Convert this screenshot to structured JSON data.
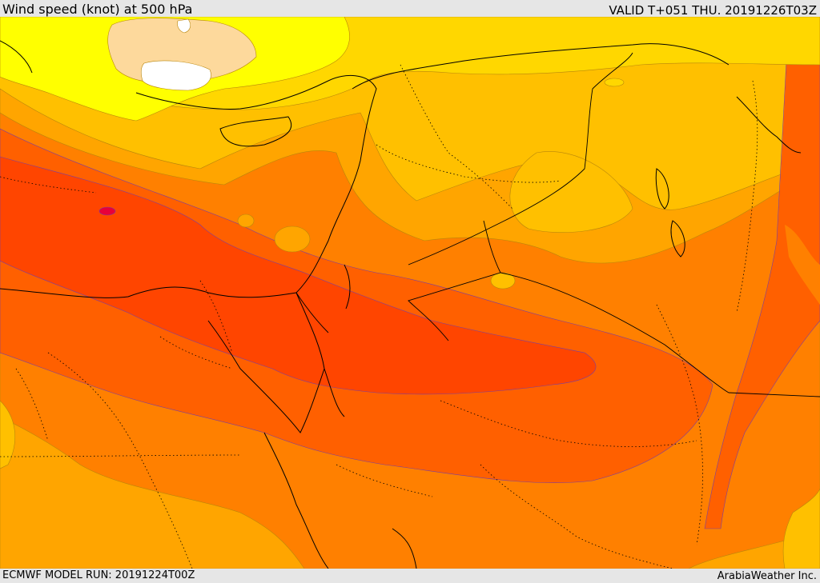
{
  "header": {
    "title": "Wind speed (knot) at 500 hPa",
    "valid": "VALID T+051 THU. 20191226T03Z"
  },
  "footer": {
    "model_run": "ECMWF MODEL RUN: 20191224T00Z",
    "credit": "ArabiaWeather Inc."
  },
  "map": {
    "variable": "Wind speed",
    "unit": "knot",
    "level": "500 hPa",
    "palette": {
      "white": "#ffffff",
      "peach": "#fdd99c",
      "yellow": "#ffff00",
      "gold": "#ffd700",
      "light_orange": "#ffc000",
      "orange": "#ffa500",
      "dark_orange": "#ff8000",
      "red_orange": "#ff6000",
      "orange_red": "#ff4500",
      "red": "#ff3000",
      "crimson": "#e8003a"
    }
  }
}
